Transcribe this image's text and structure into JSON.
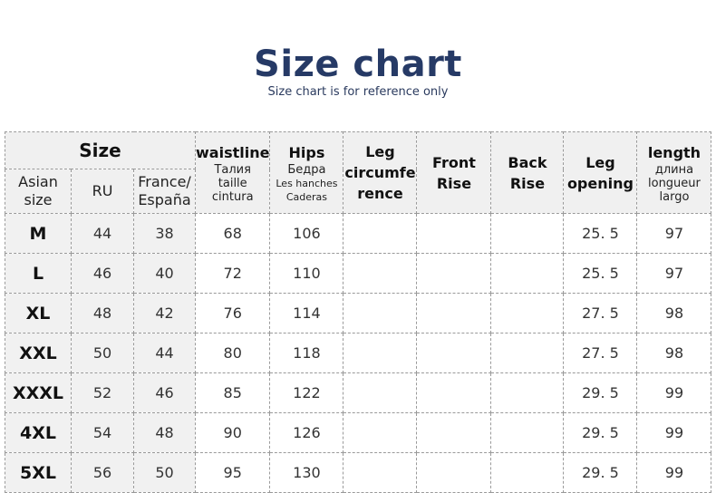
{
  "title": "Size chart",
  "subtitle": "Size chart is for reference only",
  "header": {
    "size": "Size",
    "asian_size": [
      "Asian",
      "size"
    ],
    "ru": "RU",
    "france": [
      "France/",
      "España"
    ],
    "waistline": {
      "title": "waistline",
      "lines": [
        "Талия",
        "taille",
        "cintura"
      ]
    },
    "hips": {
      "title": "Hips",
      "lines": [
        "Бедра",
        "Les hanches",
        "Caderas"
      ]
    },
    "leg_circumference": [
      "Leg",
      "circumfe",
      "rence"
    ],
    "front_rise": [
      "Front",
      "Rise"
    ],
    "back_rise": [
      "Back",
      "Rise"
    ],
    "leg_opening": [
      "Leg",
      "opening"
    ],
    "length": {
      "title": "length",
      "lines": [
        "длина",
        "longueur",
        "largo"
      ]
    }
  },
  "rows": [
    {
      "size": "M",
      "ru": "44",
      "france": "38",
      "waist": "68",
      "hips": "106",
      "leg_circ": "",
      "front_rise": "",
      "back_rise": "",
      "leg_opening": "25. 5",
      "length": "97"
    },
    {
      "size": "L",
      "ru": "46",
      "france": "40",
      "waist": "72",
      "hips": "110",
      "leg_circ": "",
      "front_rise": "",
      "back_rise": "",
      "leg_opening": "25. 5",
      "length": "97"
    },
    {
      "size": "XL",
      "ru": "48",
      "france": "42",
      "waist": "76",
      "hips": "114",
      "leg_circ": "",
      "front_rise": "",
      "back_rise": "",
      "leg_opening": "27. 5",
      "length": "98"
    },
    {
      "size": "XXL",
      "ru": "50",
      "france": "44",
      "waist": "80",
      "hips": "118",
      "leg_circ": "",
      "front_rise": "",
      "back_rise": "",
      "leg_opening": "27. 5",
      "length": "98"
    },
    {
      "size": "XXXL",
      "ru": "52",
      "france": "46",
      "waist": "85",
      "hips": "122",
      "leg_circ": "",
      "front_rise": "",
      "back_rise": "",
      "leg_opening": "29. 5",
      "length": "99"
    },
    {
      "size": "4XL",
      "ru": "54",
      "france": "48",
      "waist": "90",
      "hips": "126",
      "leg_circ": "",
      "front_rise": "",
      "back_rise": "",
      "leg_opening": "29. 5",
      "length": "99"
    },
    {
      "size": "5XL",
      "ru": "56",
      "france": "50",
      "waist": "95",
      "hips": "130",
      "leg_circ": "",
      "front_rise": "",
      "back_rise": "",
      "leg_opening": "29. 5",
      "length": "99"
    }
  ],
  "colors": {
    "title": "#263a66",
    "header_bg": "#f0f0f0",
    "border": "#9a9a9a"
  }
}
